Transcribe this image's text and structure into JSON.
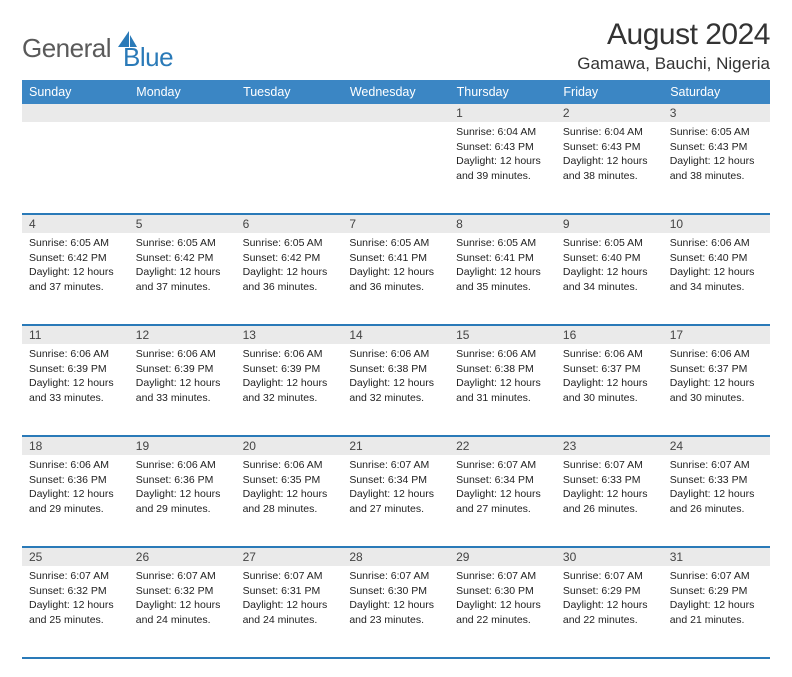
{
  "brand": {
    "part1": "General",
    "part2": "Blue"
  },
  "title": "August 2024",
  "location": "Gamawa, Bauchi, Nigeria",
  "colors": {
    "header_bg": "#3b86c4",
    "header_text": "#ffffff",
    "daynum_bg": "#eaeaea",
    "divider": "#2a7ab8",
    "logo_gray": "#5a5a5a",
    "logo_blue": "#2a7ab8"
  },
  "day_headers": [
    "Sunday",
    "Monday",
    "Tuesday",
    "Wednesday",
    "Thursday",
    "Friday",
    "Saturday"
  ],
  "weeks": [
    {
      "nums": [
        "",
        "",
        "",
        "",
        "1",
        "2",
        "3"
      ],
      "cells": [
        null,
        null,
        null,
        null,
        {
          "sunrise": "6:04 AM",
          "sunset": "6:43 PM",
          "daylight": "12 hours and 39 minutes."
        },
        {
          "sunrise": "6:04 AM",
          "sunset": "6:43 PM",
          "daylight": "12 hours and 38 minutes."
        },
        {
          "sunrise": "6:05 AM",
          "sunset": "6:43 PM",
          "daylight": "12 hours and 38 minutes."
        }
      ]
    },
    {
      "nums": [
        "4",
        "5",
        "6",
        "7",
        "8",
        "9",
        "10"
      ],
      "cells": [
        {
          "sunrise": "6:05 AM",
          "sunset": "6:42 PM",
          "daylight": "12 hours and 37 minutes."
        },
        {
          "sunrise": "6:05 AM",
          "sunset": "6:42 PM",
          "daylight": "12 hours and 37 minutes."
        },
        {
          "sunrise": "6:05 AM",
          "sunset": "6:42 PM",
          "daylight": "12 hours and 36 minutes."
        },
        {
          "sunrise": "6:05 AM",
          "sunset": "6:41 PM",
          "daylight": "12 hours and 36 minutes."
        },
        {
          "sunrise": "6:05 AM",
          "sunset": "6:41 PM",
          "daylight": "12 hours and 35 minutes."
        },
        {
          "sunrise": "6:05 AM",
          "sunset": "6:40 PM",
          "daylight": "12 hours and 34 minutes."
        },
        {
          "sunrise": "6:06 AM",
          "sunset": "6:40 PM",
          "daylight": "12 hours and 34 minutes."
        }
      ]
    },
    {
      "nums": [
        "11",
        "12",
        "13",
        "14",
        "15",
        "16",
        "17"
      ],
      "cells": [
        {
          "sunrise": "6:06 AM",
          "sunset": "6:39 PM",
          "daylight": "12 hours and 33 minutes."
        },
        {
          "sunrise": "6:06 AM",
          "sunset": "6:39 PM",
          "daylight": "12 hours and 33 minutes."
        },
        {
          "sunrise": "6:06 AM",
          "sunset": "6:39 PM",
          "daylight": "12 hours and 32 minutes."
        },
        {
          "sunrise": "6:06 AM",
          "sunset": "6:38 PM",
          "daylight": "12 hours and 32 minutes."
        },
        {
          "sunrise": "6:06 AM",
          "sunset": "6:38 PM",
          "daylight": "12 hours and 31 minutes."
        },
        {
          "sunrise": "6:06 AM",
          "sunset": "6:37 PM",
          "daylight": "12 hours and 30 minutes."
        },
        {
          "sunrise": "6:06 AM",
          "sunset": "6:37 PM",
          "daylight": "12 hours and 30 minutes."
        }
      ]
    },
    {
      "nums": [
        "18",
        "19",
        "20",
        "21",
        "22",
        "23",
        "24"
      ],
      "cells": [
        {
          "sunrise": "6:06 AM",
          "sunset": "6:36 PM",
          "daylight": "12 hours and 29 minutes."
        },
        {
          "sunrise": "6:06 AM",
          "sunset": "6:36 PM",
          "daylight": "12 hours and 29 minutes."
        },
        {
          "sunrise": "6:06 AM",
          "sunset": "6:35 PM",
          "daylight": "12 hours and 28 minutes."
        },
        {
          "sunrise": "6:07 AM",
          "sunset": "6:34 PM",
          "daylight": "12 hours and 27 minutes."
        },
        {
          "sunrise": "6:07 AM",
          "sunset": "6:34 PM",
          "daylight": "12 hours and 27 minutes."
        },
        {
          "sunrise": "6:07 AM",
          "sunset": "6:33 PM",
          "daylight": "12 hours and 26 minutes."
        },
        {
          "sunrise": "6:07 AM",
          "sunset": "6:33 PM",
          "daylight": "12 hours and 26 minutes."
        }
      ]
    },
    {
      "nums": [
        "25",
        "26",
        "27",
        "28",
        "29",
        "30",
        "31"
      ],
      "cells": [
        {
          "sunrise": "6:07 AM",
          "sunset": "6:32 PM",
          "daylight": "12 hours and 25 minutes."
        },
        {
          "sunrise": "6:07 AM",
          "sunset": "6:32 PM",
          "daylight": "12 hours and 24 minutes."
        },
        {
          "sunrise": "6:07 AM",
          "sunset": "6:31 PM",
          "daylight": "12 hours and 24 minutes."
        },
        {
          "sunrise": "6:07 AM",
          "sunset": "6:30 PM",
          "daylight": "12 hours and 23 minutes."
        },
        {
          "sunrise": "6:07 AM",
          "sunset": "6:30 PM",
          "daylight": "12 hours and 22 minutes."
        },
        {
          "sunrise": "6:07 AM",
          "sunset": "6:29 PM",
          "daylight": "12 hours and 22 minutes."
        },
        {
          "sunrise": "6:07 AM",
          "sunset": "6:29 PM",
          "daylight": "12 hours and 21 minutes."
        }
      ]
    }
  ],
  "cell_labels": {
    "sunrise": "Sunrise:",
    "sunset": "Sunset:",
    "daylight": "Daylight:"
  }
}
